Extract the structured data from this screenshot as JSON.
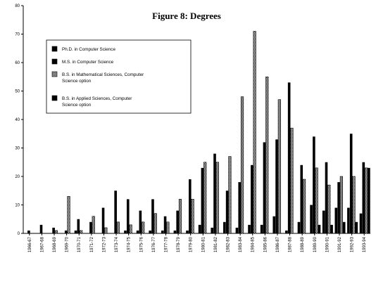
{
  "chart_data": {
    "type": "bar",
    "title": "Figure 8:  Degrees",
    "xlabel": "",
    "ylabel": "",
    "ylim": [
      0,
      80
    ],
    "yticks": [
      0,
      10,
      20,
      30,
      40,
      50,
      60,
      70,
      80
    ],
    "grid": false,
    "legend_position": "top-left",
    "categories": [
      "1966-67",
      "1967-68",
      "1968-69",
      "1969-70",
      "1970-71",
      "1971-72",
      "1972-73",
      "1973-74",
      "1974-75",
      "1975-76",
      "1976-77",
      "1977-78",
      "1978-79",
      "1979-80",
      "1980-81",
      "1981-82",
      "1982-83",
      "1983-84",
      "1984-85",
      "1985-86",
      "1986-87",
      "1987-88",
      "1988-89",
      "1989-90",
      "1990-91",
      "1991-92",
      "1992-93",
      "1993-94"
    ],
    "series": [
      {
        "name": "Ph.D. in Computer Science",
        "color": "#000000",
        "pattern": "solid",
        "values": [
          0,
          0,
          0,
          0,
          1,
          0,
          0,
          0,
          1,
          1,
          1,
          1,
          1,
          1,
          3,
          2,
          4,
          2,
          3,
          3,
          6,
          1,
          4,
          10,
          8,
          9,
          9,
          7
        ]
      },
      {
        "name": "M.S. in Computer Science",
        "color": "#000000",
        "pattern": "solid",
        "values": [
          1,
          3,
          2,
          1,
          5,
          4,
          9,
          15,
          12,
          8,
          12,
          6,
          8,
          19,
          23,
          28,
          15,
          18,
          24,
          32,
          33,
          53,
          24,
          34,
          25,
          18,
          35,
          25
        ]
      },
      {
        "name": "B.S. in Mathematical Sciences, Computer Science option",
        "color": "#888888",
        "pattern": "hatched",
        "values": [
          0,
          0,
          1,
          13,
          1,
          6,
          2,
          4,
          3,
          4,
          7,
          4,
          12,
          12,
          25,
          25,
          27,
          48,
          71,
          55,
          47,
          37,
          19,
          23,
          17,
          20,
          20,
          23
        ]
      },
      {
        "name": "B.S. in Applied Sciences, Computer Science option",
        "color": "#000000",
        "pattern": "solid",
        "values": [
          0,
          0,
          0,
          0,
          0,
          0,
          0,
          0,
          0,
          0,
          0,
          0,
          0,
          0,
          0,
          0,
          0,
          0,
          0,
          0,
          0,
          0,
          0,
          3,
          3,
          4,
          4,
          23
        ]
      }
    ]
  }
}
